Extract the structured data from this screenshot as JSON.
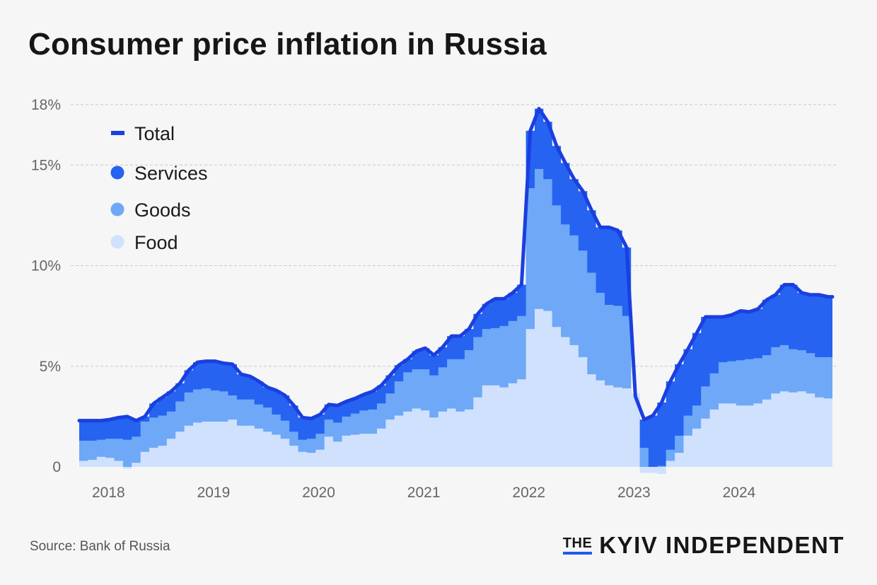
{
  "title": "Consumer price inflation in Russia",
  "source": "Source: Bank of Russia",
  "brand": {
    "the": "THE",
    "name": "KYIV INDEPENDENT"
  },
  "colors": {
    "total": "#1a3fe0",
    "services": "#2563f0",
    "goods": "#6ea8f7",
    "food": "#cfe1fd",
    "grid": "#c8c8c8"
  },
  "chart_data": {
    "type": "area",
    "title": "Consumer price inflation in Russia",
    "xlabel": "",
    "ylabel": "",
    "x_ticks": [
      "2018",
      "2019",
      "2020",
      "2021",
      "2022",
      "2023",
      "2024"
    ],
    "y_ticks": [
      "0",
      "5%",
      "10%",
      "15%",
      "18%"
    ],
    "y_tick_values": [
      0,
      5,
      10,
      15,
      18
    ],
    "ylim": [
      -0.4,
      18
    ],
    "grid": true,
    "legend_position": "top-left",
    "legend": [
      {
        "name": "Total",
        "marker": "line"
      },
      {
        "name": "Services",
        "marker": "dot"
      },
      {
        "name": "Goods",
        "marker": "dot"
      },
      {
        "name": "Food",
        "marker": "dot"
      }
    ],
    "x": [
      "2017-10",
      "2017-11",
      "2017-12",
      "2018-01",
      "2018-02",
      "2018-03",
      "2018-04",
      "2018-05",
      "2018-06",
      "2018-07",
      "2018-08",
      "2018-09",
      "2018-10",
      "2018-11",
      "2018-12",
      "2019-01",
      "2019-02",
      "2019-03",
      "2019-04",
      "2019-05",
      "2019-06",
      "2019-07",
      "2019-08",
      "2019-09",
      "2019-10",
      "2019-11",
      "2019-12",
      "2020-01",
      "2020-02",
      "2020-03",
      "2020-04",
      "2020-05",
      "2020-06",
      "2020-07",
      "2020-08",
      "2020-09",
      "2020-10",
      "2020-11",
      "2020-12",
      "2021-01",
      "2021-02",
      "2021-03",
      "2021-04",
      "2021-05",
      "2021-06",
      "2021-07",
      "2021-08",
      "2021-09",
      "2021-10",
      "2021-11",
      "2021-12",
      "2022-01",
      "2022-02",
      "2022-03",
      "2022-04",
      "2022-05",
      "2022-06",
      "2022-07",
      "2022-08",
      "2022-09",
      "2022-10",
      "2022-11",
      "2022-12",
      "2023-01",
      "2023-02",
      "2023-03",
      "2023-04",
      "2023-05",
      "2023-06",
      "2023-07",
      "2023-08",
      "2023-09",
      "2023-10",
      "2023-11",
      "2023-12",
      "2024-01",
      "2024-02",
      "2024-03",
      "2024-04",
      "2024-05",
      "2024-06",
      "2024-07",
      "2024-08",
      "2024-09",
      "2024-10",
      "2024-11"
    ],
    "series": [
      {
        "name": "Food",
        "values": [
          0.3,
          0.35,
          0.5,
          0.45,
          0.3,
          -0.1,
          0.2,
          0.75,
          0.95,
          1.05,
          1.4,
          1.75,
          2.05,
          2.2,
          2.25,
          2.25,
          2.25,
          2.35,
          2.05,
          2.05,
          1.9,
          1.75,
          1.6,
          1.4,
          1.05,
          0.75,
          0.7,
          0.85,
          1.5,
          1.25,
          1.55,
          1.6,
          1.65,
          1.65,
          1.9,
          2.35,
          2.55,
          2.75,
          2.9,
          2.8,
          2.45,
          2.75,
          2.9,
          2.75,
          2.85,
          3.45,
          4.05,
          4.05,
          3.95,
          4.15,
          4.35,
          6.85,
          7.85,
          7.75,
          6.95,
          6.45,
          6.05,
          5.45,
          4.6,
          4.3,
          4.05,
          3.95,
          3.9,
          3.65,
          -0.3,
          -0.3,
          -0.35,
          0.3,
          0.7,
          1.55,
          1.9,
          2.4,
          2.85,
          3.15,
          3.15,
          3.05,
          3.05,
          3.15,
          3.35,
          3.65,
          3.75,
          3.7,
          3.75,
          3.65,
          3.45,
          3.4
        ]
      },
      {
        "name": "Goods",
        "values": [
          1.3,
          1.3,
          1.35,
          1.4,
          1.4,
          1.35,
          1.5,
          2.25,
          2.45,
          2.55,
          2.75,
          3.25,
          3.7,
          3.85,
          3.9,
          3.8,
          3.75,
          3.55,
          3.35,
          3.35,
          3.1,
          2.95,
          2.6,
          2.3,
          1.75,
          1.35,
          1.4,
          1.65,
          2.35,
          2.2,
          2.5,
          2.65,
          2.8,
          2.85,
          3.15,
          3.65,
          4.25,
          4.7,
          4.85,
          4.85,
          4.55,
          4.95,
          5.35,
          5.35,
          5.8,
          6.45,
          6.85,
          6.9,
          7.0,
          7.25,
          7.5,
          13.85,
          14.8,
          14.3,
          13.0,
          12.05,
          11.5,
          10.75,
          9.65,
          8.65,
          8.05,
          8.0,
          7.5,
          3.6,
          0.95,
          -0.05,
          0.05,
          0.85,
          1.55,
          2.55,
          3.05,
          4.0,
          4.65,
          5.2,
          5.25,
          5.3,
          5.35,
          5.4,
          5.55,
          5.95,
          6.05,
          5.85,
          5.8,
          5.65,
          5.45,
          5.45
        ]
      },
      {
        "name": "Services",
        "values": [
          2.3,
          2.3,
          2.3,
          2.35,
          2.45,
          2.5,
          2.3,
          2.5,
          3.15,
          3.45,
          3.75,
          4.15,
          4.8,
          5.2,
          5.25,
          5.25,
          5.15,
          5.1,
          4.6,
          4.5,
          4.25,
          3.95,
          3.8,
          3.55,
          3.05,
          2.45,
          2.4,
          2.6,
          3.1,
          3.05,
          3.25,
          3.4,
          3.6,
          3.75,
          4.05,
          4.55,
          5.05,
          5.35,
          5.75,
          5.9,
          5.55,
          5.95,
          6.5,
          6.5,
          6.85,
          7.6,
          8.1,
          8.35,
          8.35,
          8.65,
          9.05,
          16.7,
          17.8,
          17.15,
          15.95,
          15.1,
          14.3,
          13.7,
          12.75,
          11.9,
          11.9,
          11.75,
          10.9,
          3.5,
          2.35,
          2.55,
          3.2,
          4.25,
          5.1,
          5.85,
          6.65,
          7.45,
          7.45,
          7.45,
          7.55,
          7.75,
          7.7,
          7.85,
          8.3,
          8.55,
          9.05,
          9.05,
          8.65,
          8.55,
          8.55,
          8.45
        ]
      },
      {
        "name": "Total",
        "values": [
          2.3,
          2.3,
          2.3,
          2.35,
          2.45,
          2.5,
          2.3,
          2.5,
          3.15,
          3.45,
          3.75,
          4.15,
          4.8,
          5.2,
          5.25,
          5.25,
          5.15,
          5.1,
          4.6,
          4.5,
          4.25,
          3.95,
          3.8,
          3.55,
          3.05,
          2.45,
          2.4,
          2.6,
          3.1,
          3.05,
          3.25,
          3.4,
          3.6,
          3.75,
          4.05,
          4.55,
          5.05,
          5.35,
          5.75,
          5.9,
          5.55,
          5.95,
          6.5,
          6.5,
          6.85,
          7.6,
          8.1,
          8.35,
          8.35,
          8.65,
          9.05,
          16.7,
          17.8,
          17.15,
          15.95,
          15.1,
          14.3,
          13.7,
          12.75,
          11.9,
          11.9,
          11.75,
          10.9,
          3.5,
          2.35,
          2.55,
          3.2,
          4.25,
          5.1,
          5.85,
          6.65,
          7.45,
          7.45,
          7.45,
          7.55,
          7.75,
          7.7,
          7.85,
          8.3,
          8.55,
          9.05,
          9.05,
          8.65,
          8.55,
          8.55,
          8.45
        ]
      }
    ]
  }
}
